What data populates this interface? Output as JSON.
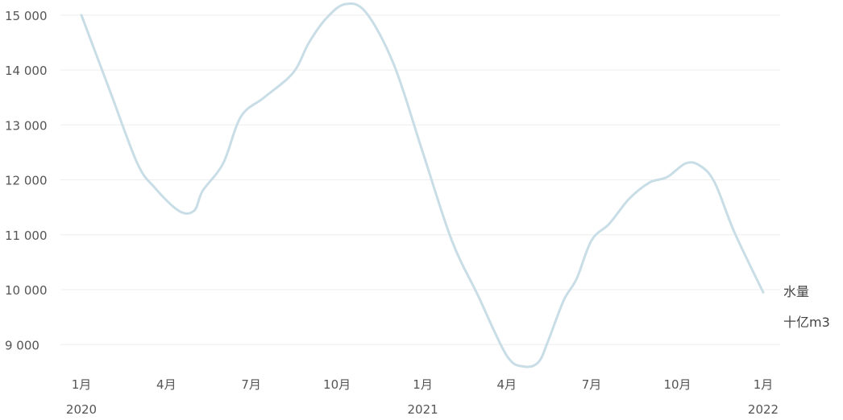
{
  "chart_data": {
    "type": "line",
    "title": "",
    "xlabel": "",
    "ylabel": "",
    "unit_labels": [
      "水量",
      "十亿m3"
    ],
    "grid": true,
    "ylim": [
      8600,
      15200
    ],
    "y_ticks": [
      {
        "value": 15000,
        "label": "15 000"
      },
      {
        "value": 14000,
        "label": "14 000"
      },
      {
        "value": 13000,
        "label": "13 000"
      },
      {
        "value": 12000,
        "label": "12 000"
      },
      {
        "value": 11000,
        "label": "11 000"
      },
      {
        "value": 10000,
        "label": "10 000"
      },
      {
        "value": 9000,
        "label": "9 000"
      }
    ],
    "x_ticks": [
      {
        "date": "2020-01",
        "month": "1月",
        "year": "2020"
      },
      {
        "date": "2020-04",
        "month": "4月",
        "year": ""
      },
      {
        "date": "2020-07",
        "month": "7月",
        "year": ""
      },
      {
        "date": "2020-10",
        "month": "10月",
        "year": ""
      },
      {
        "date": "2021-01",
        "month": "1月",
        "year": "2021"
      },
      {
        "date": "2021-04",
        "month": "4月",
        "year": ""
      },
      {
        "date": "2021-07",
        "month": "7月",
        "year": ""
      },
      {
        "date": "2021-10",
        "month": "10月",
        "year": ""
      },
      {
        "date": "2022-01",
        "month": "1月",
        "year": "2022"
      }
    ],
    "series": [
      {
        "color": "#c8dde6",
        "points": [
          {
            "x": "2020-01-01",
            "y": 15000
          },
          {
            "x": "2020-02-01",
            "y": 13600
          },
          {
            "x": "2020-03-01",
            "y": 12300
          },
          {
            "x": "2020-03-20",
            "y": 11850
          },
          {
            "x": "2020-04-15",
            "y": 11430
          },
          {
            "x": "2020-05-01",
            "y": 11440
          },
          {
            "x": "2020-05-10",
            "y": 11800
          },
          {
            "x": "2020-06-01",
            "y": 12300
          },
          {
            "x": "2020-06-20",
            "y": 13150
          },
          {
            "x": "2020-07-15",
            "y": 13500
          },
          {
            "x": "2020-08-15",
            "y": 13950
          },
          {
            "x": "2020-09-01",
            "y": 14500
          },
          {
            "x": "2020-09-20",
            "y": 14950
          },
          {
            "x": "2020-10-10",
            "y": 15200
          },
          {
            "x": "2020-11-01",
            "y": 15050
          },
          {
            "x": "2020-12-01",
            "y": 14100
          },
          {
            "x": "2021-01-01",
            "y": 12500
          },
          {
            "x": "2021-02-01",
            "y": 10900
          },
          {
            "x": "2021-03-01",
            "y": 9900
          },
          {
            "x": "2021-04-01",
            "y": 8800
          },
          {
            "x": "2021-04-20",
            "y": 8600
          },
          {
            "x": "2021-05-05",
            "y": 8680
          },
          {
            "x": "2021-05-15",
            "y": 9050
          },
          {
            "x": "2021-06-01",
            "y": 9800
          },
          {
            "x": "2021-06-15",
            "y": 10200
          },
          {
            "x": "2021-07-01",
            "y": 10900
          },
          {
            "x": "2021-07-20",
            "y": 11200
          },
          {
            "x": "2021-08-10",
            "y": 11650
          },
          {
            "x": "2021-09-01",
            "y": 11950
          },
          {
            "x": "2021-09-20",
            "y": 12050
          },
          {
            "x": "2021-10-10",
            "y": 12300
          },
          {
            "x": "2021-10-25",
            "y": 12260
          },
          {
            "x": "2021-11-10",
            "y": 11950
          },
          {
            "x": "2021-12-01",
            "y": 11050
          },
          {
            "x": "2022-01-01",
            "y": 9950
          }
        ]
      }
    ]
  }
}
